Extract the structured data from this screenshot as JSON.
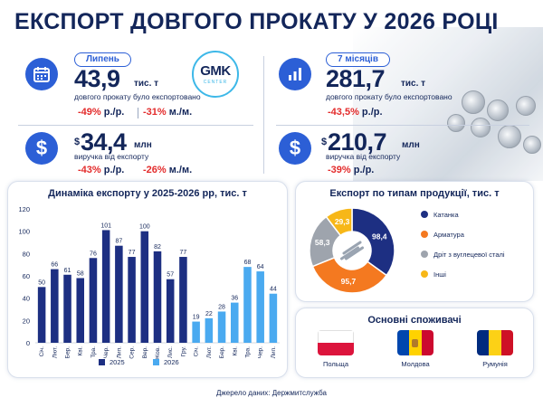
{
  "title": "ЕКСПОРТ ДОВГОГО ПРОКАТУ У 2026 РОЦІ",
  "logo": {
    "line1": "GMK",
    "line2": "CENTER"
  },
  "left_block": {
    "pill": "Липень",
    "volume_value": "43,9",
    "volume_unit": "тис. т",
    "volume_desc": "довгого прокату було експортовано",
    "volume_chg1": "-49%",
    "volume_chg1_sfx": " р./р.",
    "volume_chg2": "-31%",
    "volume_chg2_sfx": " м./м.",
    "revenue_prefix": "$",
    "revenue_value": "34,4",
    "revenue_unit": "млн",
    "revenue_desc": "виручка від експорту",
    "revenue_chg1": "-43%",
    "revenue_chg1_sfx": " р./р.",
    "revenue_chg2": "-26%",
    "revenue_chg2_sfx": " м./м."
  },
  "right_block": {
    "pill": "7 місяців",
    "volume_value": "281,7",
    "volume_unit": "тис. т",
    "volume_desc": "довгого прокату було експортовано",
    "volume_chg": "-43,5%",
    "volume_chg_sfx": " р./р.",
    "revenue_prefix": "$",
    "revenue_value": "210,7",
    "revenue_unit": "млн",
    "revenue_desc": "виручка від експорту",
    "revenue_chg": "-39%",
    "revenue_chg_sfx": " р./р."
  },
  "icons": {
    "volume": "calendar-icon",
    "volume_right": "bar-chart-icon",
    "revenue": "dollar-icon"
  },
  "colors": {
    "dark_blue": "#1d2f82",
    "light_blue": "#4aaaf0",
    "orange": "#f47920",
    "gray": "#9ea4ad",
    "yellow": "#f7b718",
    "red": "#e32b2b",
    "accent": "#2c5fd6"
  },
  "chart_data": [
    {
      "type": "bar",
      "title": "Динаміка експорту у 2025-2026 рр, тис. т",
      "categories": [
        "Січ.",
        "Лют.",
        "Бер.",
        "Кві.",
        "Тра.",
        "Чер.",
        "Лип.",
        "Сер.",
        "Вер.",
        "Жов.",
        "Лис.",
        "Гру.",
        "Січ.",
        "Лют.",
        "Бер.",
        "Кві.",
        "Тра.",
        "Чер.",
        "Лип."
      ],
      "series": [
        {
          "name": "2025",
          "color": "#1d2f82",
          "values": [
            50,
            66,
            61,
            58,
            76,
            101,
            87,
            77,
            100,
            82,
            57,
            77,
            null,
            null,
            null,
            null,
            null,
            null,
            null
          ]
        },
        {
          "name": "2026",
          "color": "#4aaaf0",
          "values": [
            null,
            null,
            null,
            null,
            null,
            null,
            null,
            null,
            null,
            null,
            null,
            null,
            19,
            22,
            28,
            36,
            68,
            64,
            44
          ]
        }
      ],
      "yticks": [
        0,
        20,
        40,
        60,
        80,
        100,
        120
      ],
      "ylim": [
        0,
        120
      ],
      "legend": "bottom"
    },
    {
      "type": "pie",
      "title": "Експорт по типам продукції, тис. т",
      "labels": [
        "Катанка",
        "Арматура",
        "Дріт з вуглецевої сталі",
        "Інші"
      ],
      "values": [
        98.4,
        95.7,
        58.3,
        29.3
      ],
      "value_labels": [
        "98,4",
        "95,7",
        "58,3",
        "29,3"
      ],
      "colors": [
        "#1d2f82",
        "#f47920",
        "#9ea4ad",
        "#f7b718"
      ],
      "donut": true,
      "legend": "right"
    }
  ],
  "consumers": {
    "title": "Основні споживачі",
    "countries": [
      {
        "name": "Польща",
        "flag": "poland-flag-icon"
      },
      {
        "name": "Молдова",
        "flag": "moldova-flag-icon"
      },
      {
        "name": "Румунія",
        "flag": "romania-flag-icon"
      }
    ]
  },
  "source": "Джерело даних: Держмитслужба"
}
